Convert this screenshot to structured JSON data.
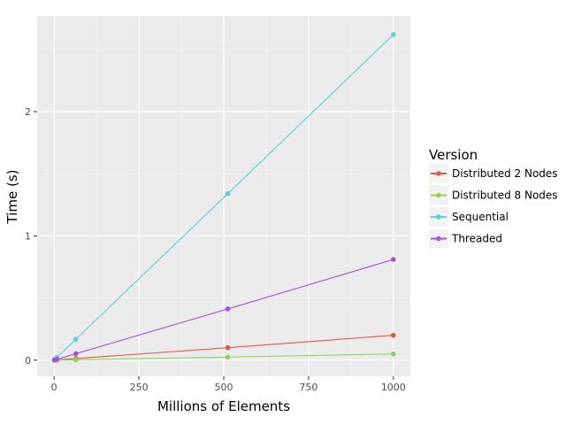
{
  "chart_data": {
    "type": "line",
    "title": "",
    "xlabel": "Millions of Elements",
    "ylabel": "Time (s)",
    "xlim": [
      -50,
      1050
    ],
    "ylim": [
      -0.13,
      2.77
    ],
    "x_ticks": [
      0,
      250,
      500,
      750,
      1000
    ],
    "x_tick_labels": [
      "0",
      "250",
      "500",
      "750",
      "1000"
    ],
    "y_ticks": [
      0,
      1,
      2
    ],
    "y_tick_labels": [
      "0",
      "1",
      "2"
    ],
    "grid": true,
    "legend": {
      "title": "Version",
      "placement": "right"
    },
    "series": [
      {
        "name": "Distributed 2 Nodes",
        "color": "#e0584b",
        "x": [
          1,
          8,
          64,
          512,
          1000
        ],
        "y": [
          0.0,
          0.002,
          0.013,
          0.1,
          0.2
        ]
      },
      {
        "name": "Distributed 8 Nodes",
        "color": "#8fd45a",
        "x": [
          1,
          8,
          64,
          512,
          1000
        ],
        "y": [
          0.0,
          0.0,
          0.003,
          0.025,
          0.05
        ]
      },
      {
        "name": "Sequential",
        "color": "#5bd0dd",
        "x": [
          1,
          8,
          64,
          512,
          1000
        ],
        "y": [
          0.003,
          0.022,
          0.168,
          1.34,
          2.62
        ]
      },
      {
        "name": "Threaded",
        "color": "#a552e1",
        "x": [
          1,
          8,
          64,
          512,
          1000
        ],
        "y": [
          0.001,
          0.007,
          0.052,
          0.412,
          0.81
        ]
      }
    ]
  }
}
